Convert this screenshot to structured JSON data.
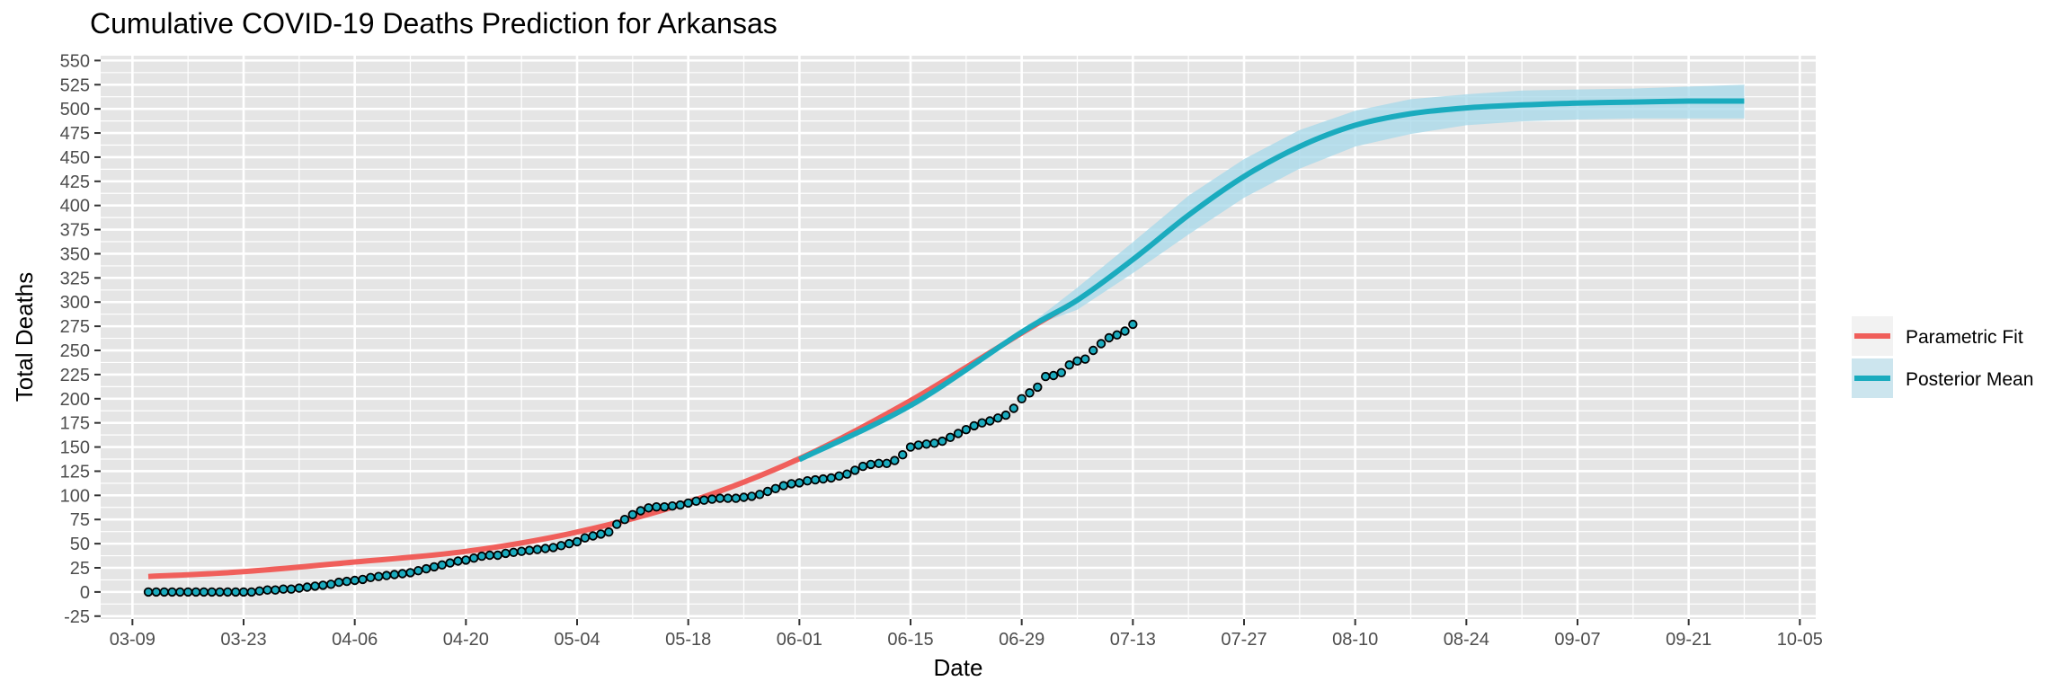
{
  "chart_data": {
    "type": "line",
    "title": "Cumulative COVID-19 Deaths Prediction for Arkansas",
    "xlabel": "Date",
    "ylabel": "Total Deaths",
    "grid": true,
    "legend_placement": "right",
    "x_tick_labels": [
      "03-09",
      "03-23",
      "04-06",
      "04-20",
      "05-04",
      "05-18",
      "06-01",
      "06-15",
      "06-29",
      "07-13",
      "07-27",
      "08-10",
      "08-24",
      "09-07",
      "09-21",
      "10-05"
    ],
    "x_ticks": [
      "2020-03-09",
      "2020-03-23",
      "2020-04-06",
      "2020-04-20",
      "2020-05-04",
      "2020-05-18",
      "2020-06-01",
      "2020-06-15",
      "2020-06-29",
      "2020-07-13",
      "2020-07-27",
      "2020-08-10",
      "2020-08-24",
      "2020-09-07",
      "2020-09-21",
      "2020-10-05"
    ],
    "xlim": [
      "2020-03-05",
      "2020-10-07"
    ],
    "y_ticks": [
      -25,
      0,
      25,
      50,
      75,
      100,
      125,
      150,
      175,
      200,
      225,
      250,
      275,
      300,
      325,
      350,
      375,
      400,
      425,
      450,
      475,
      500,
      525,
      550
    ],
    "ylim": [
      -28,
      555
    ],
    "colors": {
      "parametric": "#F05F5B",
      "posterior": "#1AABBE",
      "band": "#A6D8EA",
      "band_light": "#C6E6F0",
      "panel": "#E5E5E5",
      "grid": "#FFFFFF",
      "point_fill": "#1AABBE",
      "point_edge": "#000000"
    },
    "series": [
      {
        "name": "Parametric Fit",
        "color": "#F05F5B",
        "x": [
          "2020-03-11",
          "2020-03-23",
          "2020-04-06",
          "2020-04-20",
          "2020-05-04",
          "2020-05-18",
          "2020-06-01",
          "2020-06-15",
          "2020-06-29",
          "2020-07-05"
        ],
        "y": [
          16,
          21,
          31,
          42,
          62,
          93,
          138,
          198,
          268,
          297
        ]
      },
      {
        "name": "Posterior Mean",
        "color": "#1AABBE",
        "x": [
          "2020-06-01",
          "2020-06-15",
          "2020-06-29",
          "2020-07-06",
          "2020-07-13",
          "2020-07-20",
          "2020-07-27",
          "2020-08-03",
          "2020-08-10",
          "2020-08-17",
          "2020-08-24",
          "2020-08-31",
          "2020-09-07",
          "2020-09-14",
          "2020-09-21",
          "2020-09-28"
        ],
        "y": [
          137,
          193,
          269,
          302,
          344,
          390,
          430,
          461,
          483,
          495,
          501,
          504,
          506,
          507,
          508,
          508
        ]
      }
    ],
    "band": {
      "name": "Posterior Interval",
      "x": [
        "2020-07-01",
        "2020-07-06",
        "2020-07-13",
        "2020-07-20",
        "2020-07-27",
        "2020-08-03",
        "2020-08-10",
        "2020-08-17",
        "2020-08-24",
        "2020-08-31",
        "2020-09-07",
        "2020-09-14",
        "2020-09-21",
        "2020-09-28"
      ],
      "upper": [
        283,
        315,
        362,
        410,
        448,
        478,
        498,
        510,
        515,
        519,
        520,
        521,
        523,
        525
      ],
      "lower": [
        277,
        292,
        330,
        370,
        408,
        438,
        461,
        474,
        483,
        487,
        489,
        490,
        490,
        490
      ]
    },
    "observed_points": {
      "start_date": "2020-03-11",
      "y": [
        0,
        0,
        0,
        0,
        0,
        0,
        0,
        0,
        0,
        0,
        0,
        0,
        0,
        0,
        1,
        2,
        2,
        3,
        3,
        4,
        5,
        6,
        7,
        8,
        10,
        11,
        12,
        13,
        15,
        16,
        17,
        18,
        19,
        20,
        22,
        24,
        26,
        28,
        30,
        32,
        33,
        35,
        37,
        38,
        38,
        40,
        41,
        42,
        43,
        44,
        45,
        46,
        48,
        50,
        52,
        56,
        58,
        60,
        62,
        70,
        75,
        80,
        84,
        87,
        88,
        88,
        89,
        90,
        92,
        94,
        95,
        96,
        97,
        97,
        97,
        98,
        99,
        101,
        104,
        107,
        110,
        112,
        113,
        115,
        116,
        117,
        118,
        120,
        122,
        126,
        130,
        132,
        133,
        133,
        136,
        142,
        150,
        152,
        153,
        154,
        156,
        160,
        164,
        168,
        172,
        175,
        177,
        180,
        183,
        190,
        200,
        206,
        212,
        223,
        224,
        227,
        235,
        239,
        241,
        250,
        257,
        263,
        266,
        270,
        277
      ]
    },
    "legend": [
      "Parametric Fit",
      "Posterior Mean"
    ]
  }
}
